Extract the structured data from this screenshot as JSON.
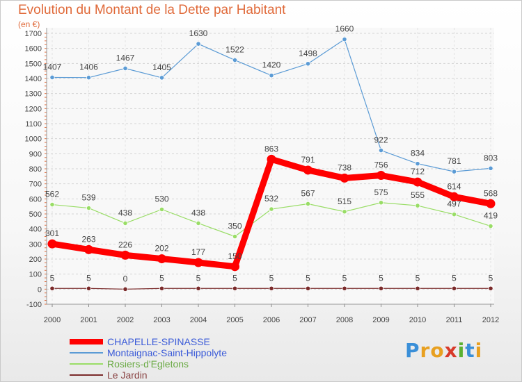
{
  "title": "Evolution du Montant de la Dette par Habitant",
  "subtitle": "(en €)",
  "logo": {
    "text": "Proxiti",
    "letters": [
      {
        "ch": "P",
        "color": "#3a8fd8"
      },
      {
        "ch": "r",
        "color": "#e8a020"
      },
      {
        "ch": "o",
        "color": "#e8a020"
      },
      {
        "ch": "x",
        "color": "#d83a2a"
      },
      {
        "ch": "i",
        "color": "#5ab030"
      },
      {
        "ch": "t",
        "color": "#3a8fd8"
      },
      {
        "ch": "i",
        "color": "#e8a020"
      }
    ]
  },
  "chart_data": {
    "type": "line",
    "title": "Evolution du Montant de la Dette par Habitant",
    "subtitle": "(en €)",
    "x": [
      "2000",
      "2001",
      "2002",
      "2003",
      "2004",
      "2005",
      "2006",
      "2007",
      "2008",
      "2009",
      "2010",
      "2011",
      "2012"
    ],
    "ylim": [
      -100,
      1700
    ],
    "yticks": [
      -100,
      0,
      100,
      200,
      300,
      400,
      500,
      600,
      700,
      800,
      900,
      1000,
      1100,
      1200,
      1300,
      1400,
      1500,
      1600,
      1700
    ],
    "grid": true,
    "legend_position": "bottom-left",
    "series": [
      {
        "name": "CHAPELLE-SPINASSE",
        "color": "#ff0000",
        "values": [
          301,
          263,
          226,
          202,
          177,
          150,
          863,
          791,
          738,
          756,
          712,
          614,
          568
        ],
        "labels": [
          "301",
          "263",
          "226",
          "202",
          "177",
          "150",
          "863",
          "791",
          "738",
          "756",
          "712",
          "614",
          "568"
        ]
      },
      {
        "name": "Montaignac-Saint-Hippolyte",
        "color": "#5b9bd5",
        "values": [
          1407,
          1406,
          1467,
          1405,
          1630,
          1522,
          1420,
          1498,
          1660,
          922,
          834,
          781,
          803
        ],
        "labels": [
          "1407",
          "1406",
          "1467",
          "1405",
          "1630",
          "1522",
          "1420",
          "1498",
          "1660",
          "922",
          "834",
          "781",
          "803"
        ]
      },
      {
        "name": "Rosiers-d'Egletons",
        "color": "#99dd66",
        "values": [
          562,
          539,
          438,
          530,
          438,
          350,
          532,
          567,
          515,
          575,
          555,
          497,
          419
        ],
        "labels": [
          "562",
          "539",
          "438",
          "530",
          "438",
          "350",
          "532",
          "567",
          "515",
          "575",
          "555",
          "497",
          "419"
        ]
      },
      {
        "name": "Le Jardin",
        "color": "#7a2a2a",
        "values": [
          5,
          5,
          0,
          5,
          5,
          5,
          5,
          5,
          5,
          5,
          5,
          5,
          5
        ],
        "labels": [
          "5",
          "5",
          "0",
          "5",
          "5",
          "5",
          "5",
          "5",
          "5",
          "5",
          "5",
          "5",
          "5"
        ]
      }
    ]
  }
}
